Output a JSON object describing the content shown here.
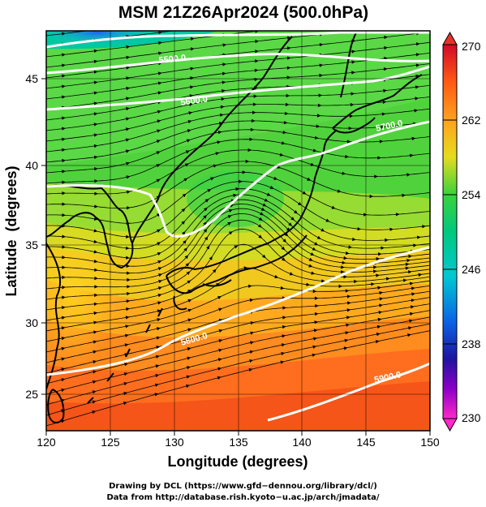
{
  "title": "MSM 21Z26Apr2024 (500.0hPa)",
  "map": {
    "xlabel": "Longitude (degrees)",
    "ylabel": "Latitude  (degrees)",
    "x_ticks": [
      "120",
      "125",
      "130",
      "135",
      "140",
      "145",
      "150"
    ],
    "y_ticks": [
      "25",
      "30",
      "35",
      "40",
      "45"
    ],
    "x_range": [
      120,
      150
    ],
    "y_range": [
      22.4,
      47.6
    ],
    "field": "temperature (K)",
    "contours": {
      "geopotential_height_m": [
        {
          "label": "5500.0",
          "lon": 126.5,
          "lat": 46.0
        },
        {
          "label": "5600.0",
          "lon": 130.5,
          "lat": 43.6
        },
        {
          "label": "5700.0",
          "lon": 146.8,
          "lat": 41.2
        },
        {
          "label": "5800.0",
          "lon": 134.5,
          "lat": 29.2
        },
        {
          "label": "5900.0",
          "lon": 146.5,
          "lat": 25.0
        }
      ]
    }
  },
  "colorbar": {
    "min_label": "230",
    "max_label": "270",
    "tick_labels": [
      "270",
      "262",
      "254",
      "246",
      "238",
      "230"
    ],
    "values": [
      270,
      262,
      254,
      246,
      238,
      230
    ],
    "colors": [
      "#d20a32",
      "#f05a1e",
      "#ff9a1e",
      "#f0c81e",
      "#c3e11e",
      "#50d23c",
      "#00c878",
      "#00c8c8",
      "#0087e6",
      "#0a32c8",
      "#6e00b4",
      "#ff28c3"
    ]
  },
  "credits": {
    "line1": "Drawing by DCL (https://www.gfd−dennou.org/library/dcl/)",
    "line2": "Data from http://database.rish.kyoto−u.ac.jp/arch/jmadata/"
  }
}
